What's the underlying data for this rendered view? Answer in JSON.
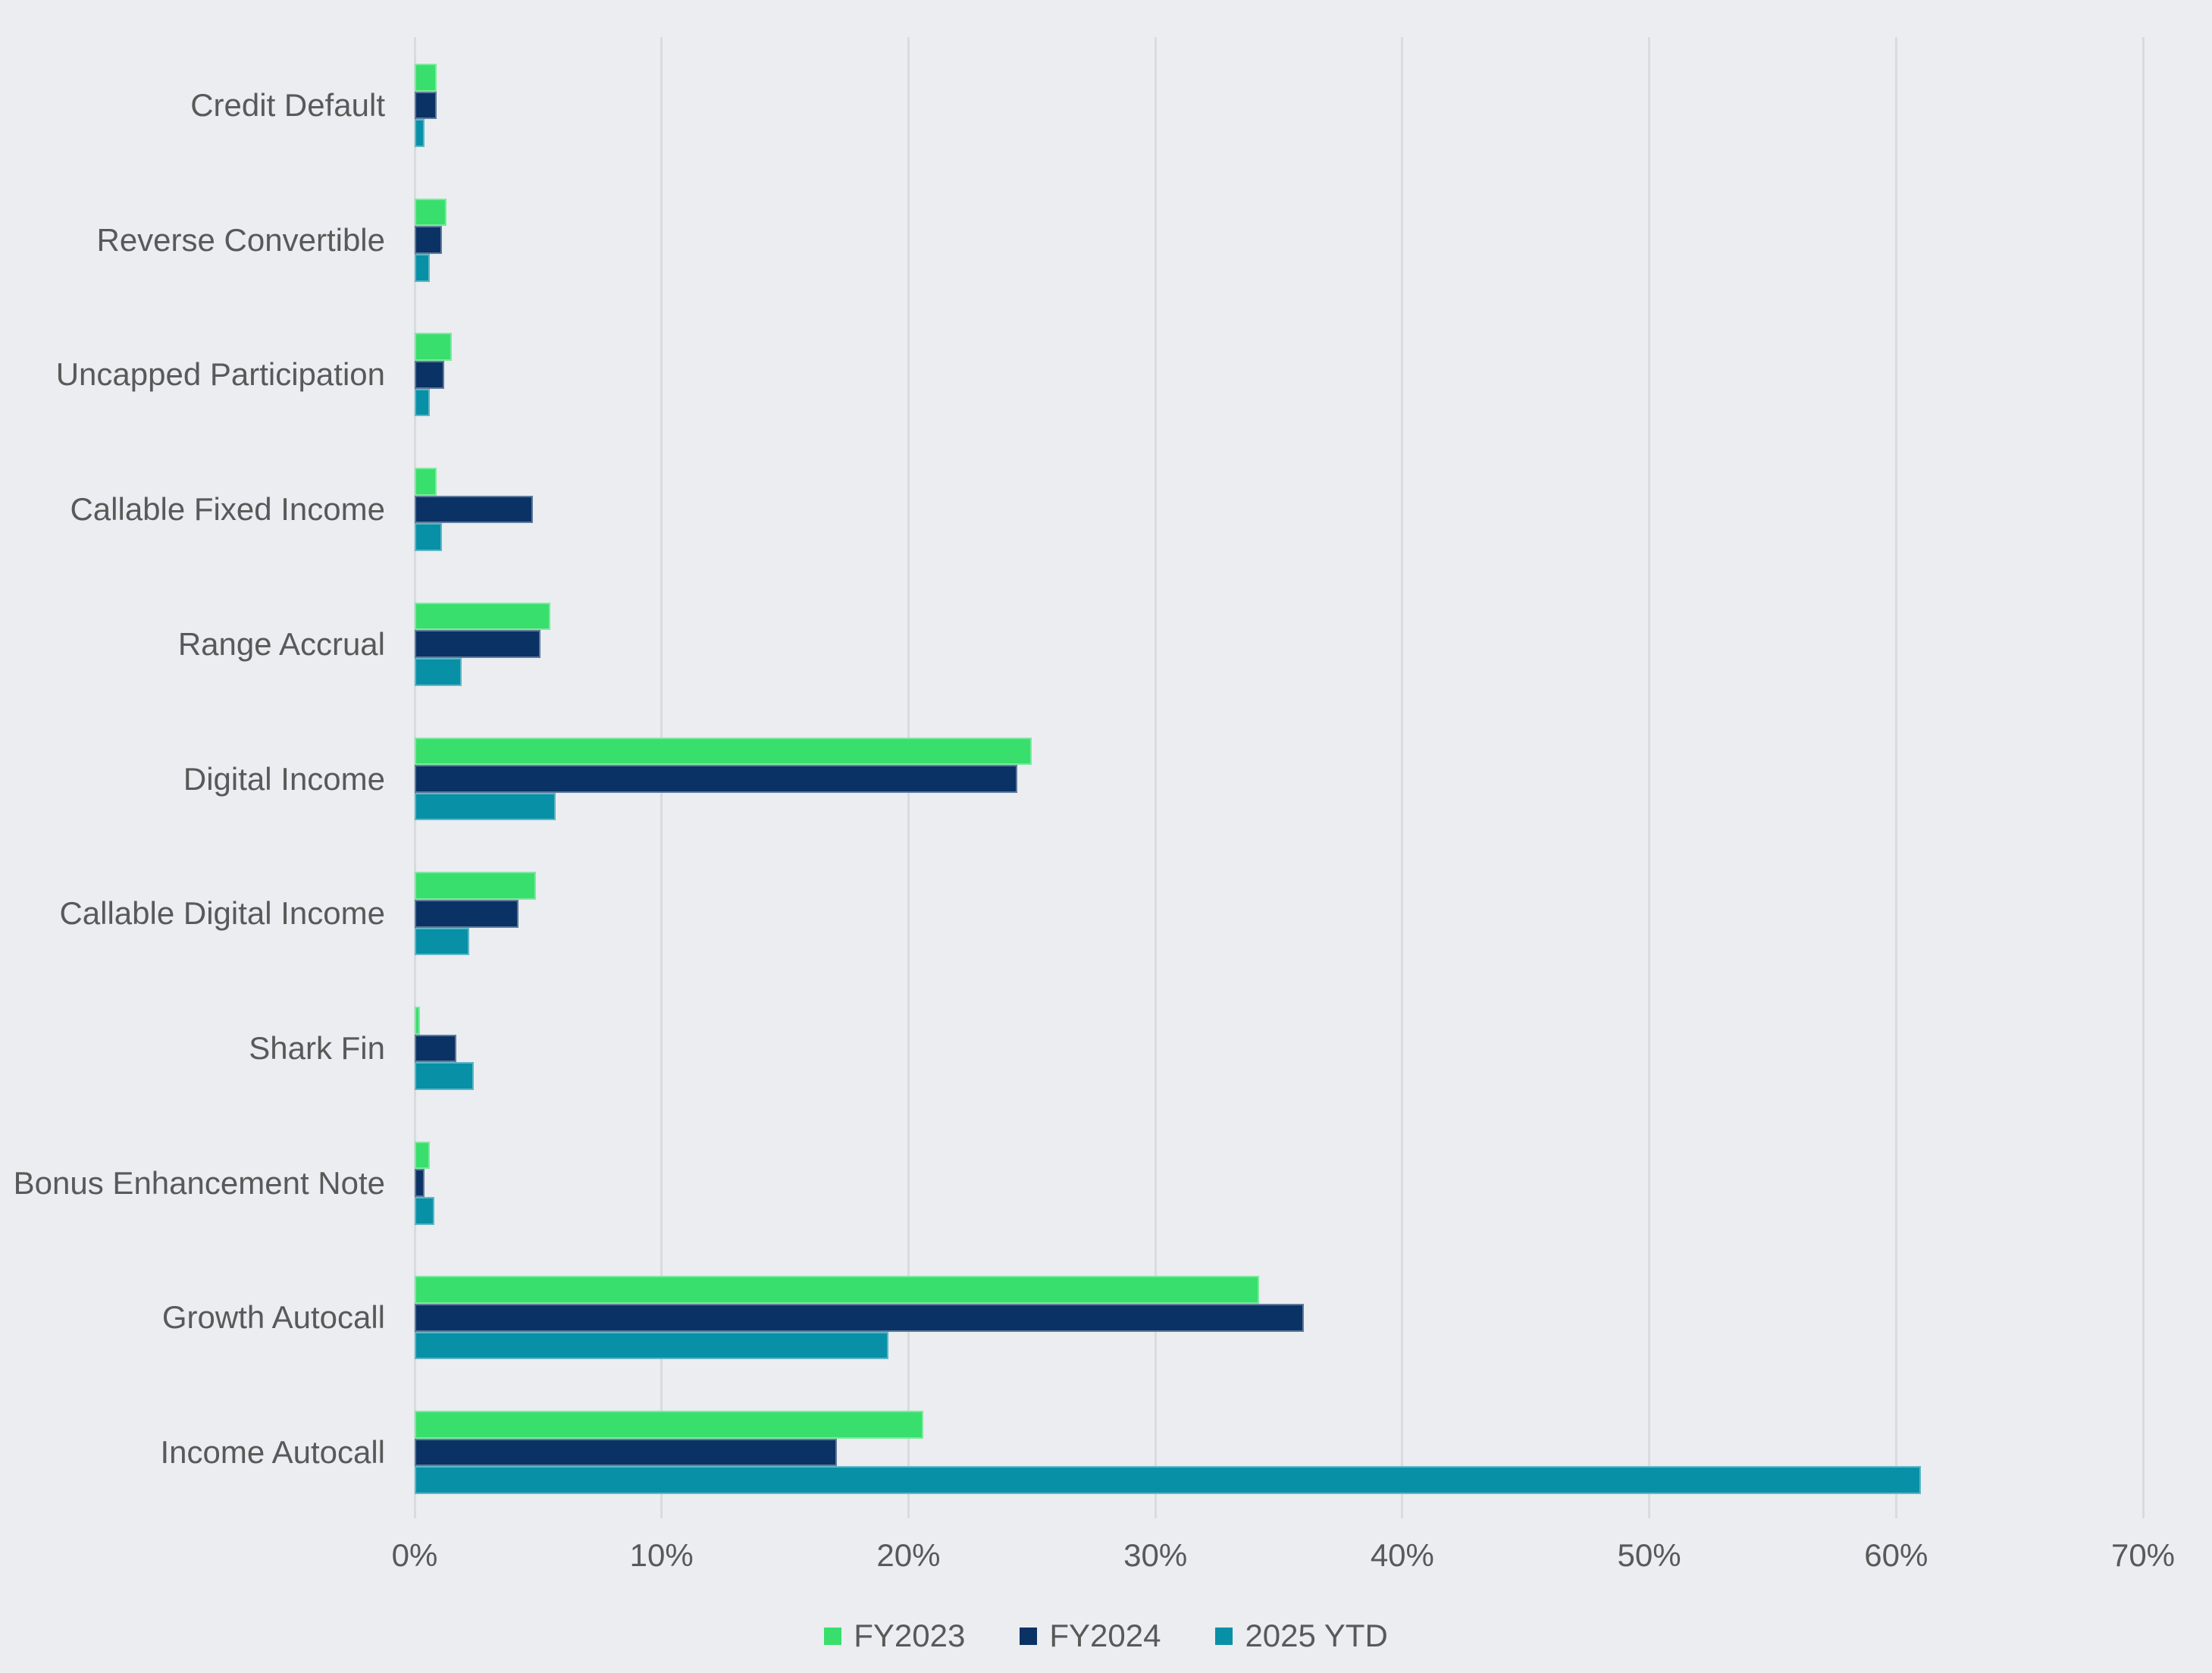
{
  "chart_data": {
    "type": "bar",
    "orientation": "horizontal",
    "title": "",
    "xlabel": "",
    "ylabel": "",
    "x_max_percent": 70,
    "x_ticks": [
      "0%",
      "10%",
      "20%",
      "30%",
      "40%",
      "50%",
      "60%",
      "70%"
    ],
    "grid": true,
    "legend_position": "bottom",
    "categories": [
      "Credit Default",
      "Reverse Convertible",
      "Uncapped Participation",
      "Callable Fixed Income",
      "Range Accrual",
      "Digital Income",
      "Callable Digital Income",
      "Shark Fin",
      "Bonus Enhancement Note",
      "Growth Autocall",
      "Income Autocall"
    ],
    "series": [
      {
        "name": "FY2023",
        "color": "#38df6c",
        "values": [
          0.9,
          1.3,
          1.5,
          0.9,
          5.5,
          25.0,
          4.9,
          0.2,
          0.6,
          34.2,
          20.6
        ]
      },
      {
        "name": "FY2024",
        "color": "#0a3265",
        "values": [
          0.9,
          1.1,
          1.2,
          4.8,
          5.1,
          24.4,
          4.2,
          1.7,
          0.4,
          36.0,
          17.1
        ]
      },
      {
        "name": "2025 YTD",
        "color": "#0890a7",
        "values": [
          0.4,
          0.6,
          0.6,
          1.1,
          1.9,
          5.7,
          2.2,
          2.4,
          0.8,
          19.2,
          61.0
        ]
      }
    ],
    "values_unit": "%"
  },
  "colors": {
    "background": "#ebedf0",
    "gridline": "#d9dbde",
    "text": "#595959",
    "series_fy2023": "#38df6c",
    "series_fy2024": "#0a3265",
    "series_2025ytd": "#0890a7"
  }
}
